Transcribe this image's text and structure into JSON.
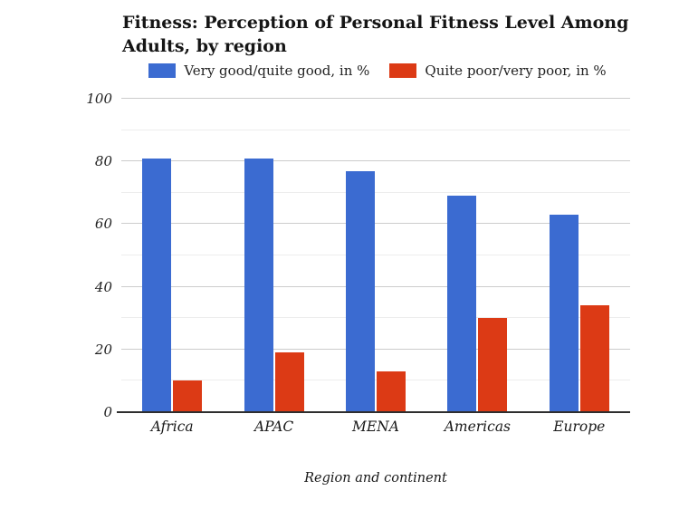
{
  "chart_data": {
    "type": "bar",
    "title": "Fitness: Perception of Personal Fitness Level Among Adults, by region",
    "xlabel": "Region and continent",
    "ylabel": "",
    "categories": [
      "Africa",
      "APAC",
      "MENA",
      "Americas",
      "Europe"
    ],
    "series": [
      {
        "name": "Very good/quite good, in %",
        "color": "#3b6bd1",
        "values": [
          81,
          81,
          77,
          69,
          63
        ]
      },
      {
        "name": "Quite poor/very poor, in %",
        "color": "#dc3a15",
        "values": [
          10,
          19,
          13,
          30,
          34
        ]
      }
    ],
    "ylim": [
      0,
      100
    ],
    "yticks": [
      0,
      20,
      40,
      60,
      80,
      100
    ],
    "minor_yticks": [
      10,
      30,
      50,
      70,
      90
    ],
    "grid": true,
    "legend_position": "top"
  },
  "colors": {
    "background": "#ffffff",
    "major_grid": "#cccccc",
    "minor_grid": "#ededed",
    "axis_line": "#2e2e2e",
    "text": "#1a1a1a"
  }
}
